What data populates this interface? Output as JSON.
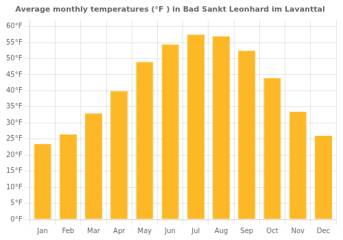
{
  "chart_data": {
    "type": "bar",
    "title": "Average monthly temperatures (°F ) in Bad Sankt Leonhard im Lavanttal",
    "categories": [
      "Jan",
      "Feb",
      "Mar",
      "Apr",
      "May",
      "Jun",
      "Jul",
      "Aug",
      "Sep",
      "Oct",
      "Nov",
      "Dec"
    ],
    "values": [
      23.5,
      26.5,
      33.0,
      40.0,
      49.0,
      54.5,
      57.5,
      57.0,
      52.5,
      44.0,
      33.5,
      26.0
    ],
    "color": "#FDB827",
    "ylim": [
      0,
      62
    ],
    "yticks": [
      {
        "value": 0,
        "label": "0°F"
      },
      {
        "value": 5,
        "label": "5°F"
      },
      {
        "value": 10,
        "label": "10°F"
      },
      {
        "value": 15,
        "label": "15°F"
      },
      {
        "value": 20,
        "label": "20°F"
      },
      {
        "value": 25,
        "label": "25°F"
      },
      {
        "value": 30,
        "label": "30°F"
      },
      {
        "value": 35,
        "label": "35°F"
      },
      {
        "value": 40,
        "label": "40°F"
      },
      {
        "value": 45,
        "label": "45°F"
      },
      {
        "value": 50,
        "label": "50°F"
      },
      {
        "value": 55,
        "label": "55°F"
      },
      {
        "value": 60,
        "label": "60°F"
      }
    ],
    "grid": true
  }
}
